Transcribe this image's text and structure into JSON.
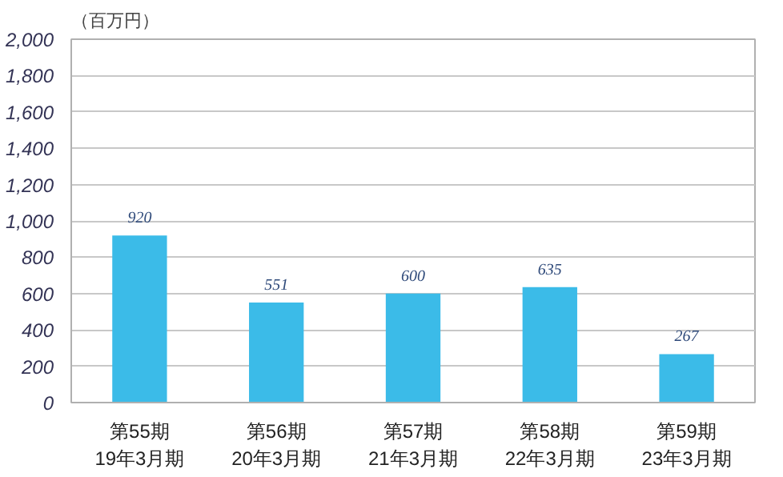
{
  "chart_data": {
    "type": "bar",
    "ylabel": "（百万円）",
    "categories": [
      "第55期\n19年3月期",
      "第56期\n20年3月期",
      "第57期\n21年3月期",
      "第58期\n22年3月期",
      "第59期\n23年3月期"
    ],
    "values": [
      920,
      551,
      600,
      635,
      267
    ],
    "color": "#3bbbe8",
    "ylim": [
      0,
      2000
    ],
    "yticks": [
      {
        "value": 0,
        "label": "0"
      },
      {
        "value": 200,
        "label": "200"
      },
      {
        "value": 400,
        "label": "400"
      },
      {
        "value": 600,
        "label": "600"
      },
      {
        "value": 800,
        "label": "800"
      },
      {
        "value": 1000,
        "label": "1,000"
      },
      {
        "value": 1200,
        "label": "1,200"
      },
      {
        "value": 1400,
        "label": "1,400"
      },
      {
        "value": 1600,
        "label": "1,600"
      },
      {
        "value": 1800,
        "label": "1,800"
      },
      {
        "value": 2000,
        "label": "2,000"
      }
    ],
    "grid": "y",
    "data_labels": true
  }
}
